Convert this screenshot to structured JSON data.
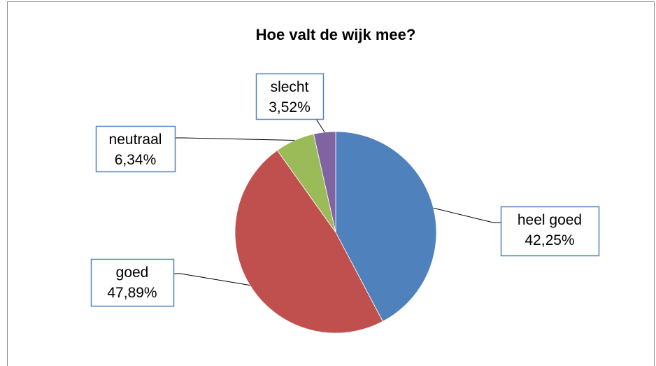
{
  "chart_data": {
    "type": "pie",
    "title": "Hoe valt de wijk mee?",
    "categories": [
      "heel goed",
      "goed",
      "neutraal",
      "slecht"
    ],
    "values": [
      42.25,
      47.89,
      6.34,
      3.52
    ],
    "value_labels": [
      "42,25%",
      "47,89%",
      "6,34%",
      "3,52%"
    ],
    "colors": [
      "#4f81bd",
      "#c0504d",
      "#9bbb59",
      "#8064a2"
    ]
  }
}
